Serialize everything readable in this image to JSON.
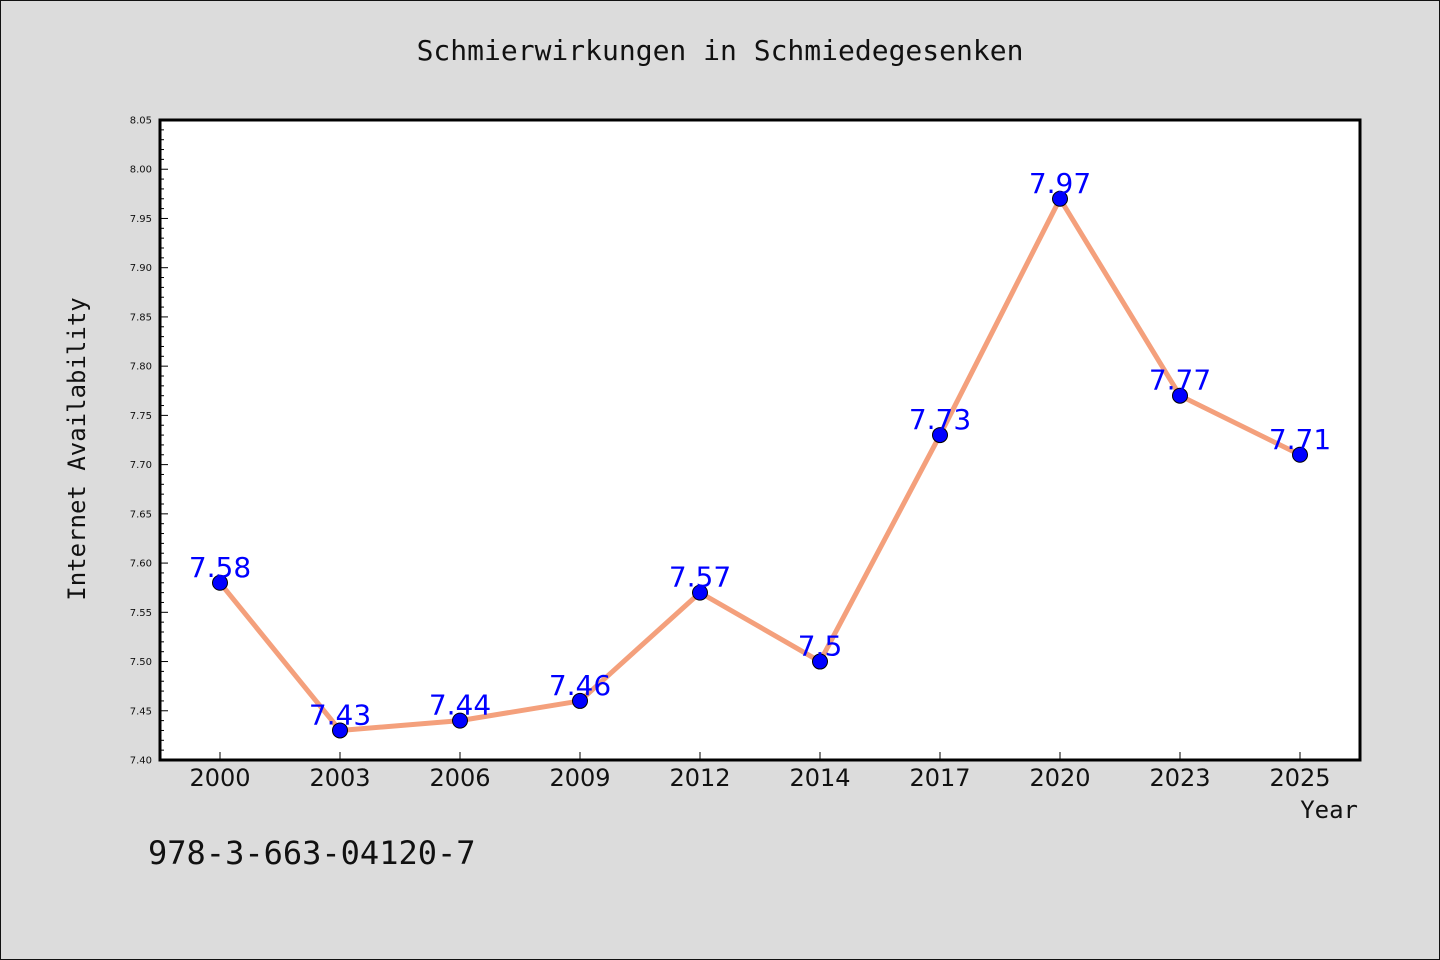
{
  "chart_data": {
    "type": "line",
    "title": "Schmierwirkungen in Schmiedegesenken",
    "xlabel": "Year",
    "ylabel": "Internet Availability",
    "categories": [
      "2000",
      "2003",
      "2006",
      "2009",
      "2012",
      "2014",
      "2017",
      "2020",
      "2023",
      "2025"
    ],
    "series": [
      {
        "values": [
          7.58,
          7.43,
          7.44,
          7.46,
          7.57,
          7.5,
          7.73,
          7.97,
          7.77,
          7.71
        ],
        "labels": [
          "7.58",
          "7.43",
          "7.44",
          "7.46",
          "7.57",
          "7.5",
          "7.73",
          "7.97",
          "7.77",
          "7.71"
        ]
      }
    ],
    "ylim": [
      7.4,
      8.05
    ],
    "yticks": [
      "7.40",
      "7.45",
      "7.50",
      "7.55",
      "7.60",
      "7.65",
      "7.70",
      "7.75",
      "7.80",
      "7.85",
      "7.90",
      "7.95",
      "8.00",
      "8.05"
    ],
    "grid": false,
    "legend": "none",
    "colors": {
      "line": "#f4a07c",
      "marker": "#0000ff",
      "label": "#0000ff",
      "background": "#dcdcdc",
      "plot_background": "#ffffff"
    }
  },
  "footer": {
    "isbn": "978-3-663-04120-7"
  }
}
